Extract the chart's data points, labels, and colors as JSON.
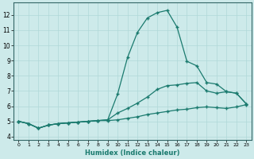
{
  "xlabel": "Humidex (Indice chaleur)",
  "background_color": "#cdeaea",
  "grid_color": "#b0d8d8",
  "line_color": "#1a7a6e",
  "xlim": [
    -0.5,
    23.5
  ],
  "ylim": [
    3.8,
    12.8
  ],
  "yticks": [
    4,
    5,
    6,
    7,
    8,
    9,
    10,
    11,
    12
  ],
  "xticks": [
    0,
    1,
    2,
    3,
    4,
    5,
    6,
    7,
    8,
    9,
    10,
    11,
    12,
    13,
    14,
    15,
    16,
    17,
    18,
    19,
    20,
    21,
    22,
    23
  ],
  "line1_x": [
    0,
    1,
    2,
    3,
    4,
    5,
    6,
    7,
    8,
    9,
    10,
    11,
    12,
    13,
    14,
    15,
    16,
    17,
    18,
    19,
    20,
    21,
    22,
    23
  ],
  "line1_y": [
    5.0,
    4.85,
    4.55,
    4.75,
    4.85,
    4.9,
    4.95,
    5.0,
    5.05,
    5.05,
    5.1,
    5.2,
    5.3,
    5.45,
    5.55,
    5.65,
    5.75,
    5.8,
    5.9,
    5.95,
    5.9,
    5.85,
    5.95,
    6.1
  ],
  "line2_x": [
    0,
    1,
    2,
    3,
    4,
    5,
    6,
    7,
    8,
    9,
    10,
    11,
    12,
    13,
    14,
    15,
    16,
    17,
    18,
    19,
    20,
    21,
    22,
    23
  ],
  "line2_y": [
    5.0,
    4.85,
    4.55,
    4.75,
    4.85,
    4.9,
    4.95,
    5.0,
    5.05,
    5.1,
    5.55,
    5.85,
    6.2,
    6.6,
    7.1,
    7.35,
    7.4,
    7.5,
    7.55,
    7.0,
    6.85,
    6.95,
    6.85,
    6.15
  ],
  "line3_x": [
    0,
    1,
    2,
    3,
    4,
    5,
    6,
    7,
    8,
    9,
    10,
    11,
    12,
    13,
    14,
    15,
    16,
    17,
    18,
    19,
    20,
    21,
    22,
    23
  ],
  "line3_y": [
    5.0,
    4.85,
    4.55,
    4.75,
    4.85,
    4.9,
    4.95,
    5.0,
    5.05,
    5.1,
    6.8,
    9.2,
    10.85,
    11.8,
    12.15,
    12.3,
    11.2,
    8.95,
    8.65,
    7.55,
    7.45,
    6.95,
    6.85,
    6.15
  ]
}
